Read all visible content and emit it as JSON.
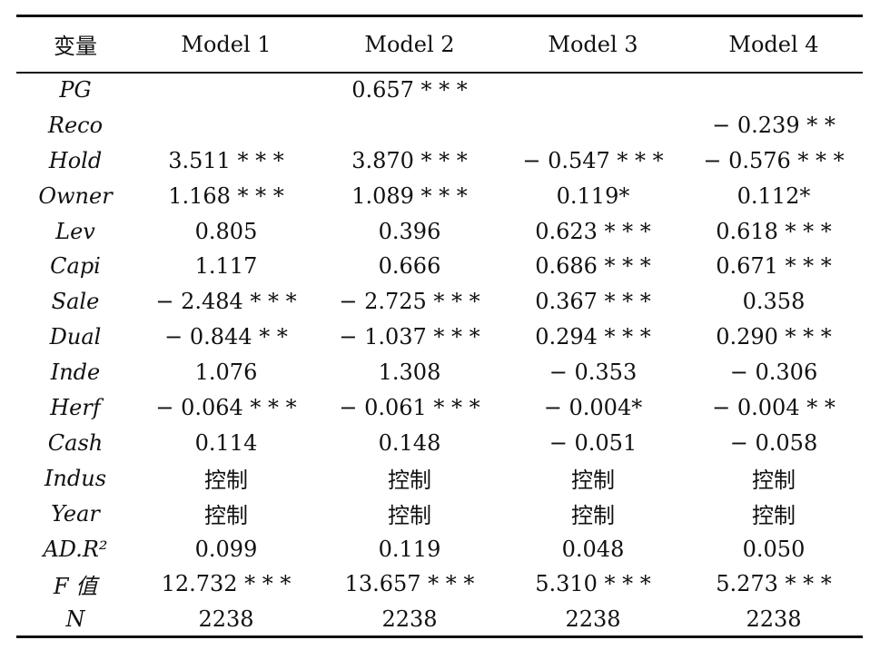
{
  "table": {
    "header": [
      "变量",
      "Model 1",
      "Model 2",
      "Model 3",
      "Model 4"
    ],
    "rows": [
      {
        "var": "PG",
        "cells": [
          "",
          "0.657 * * *",
          "",
          ""
        ]
      },
      {
        "var": "Reco",
        "cells": [
          "",
          "",
          "",
          "− 0.239 * *"
        ]
      },
      {
        "var": "Hold",
        "cells": [
          "3.511 * * *",
          "3.870 * * *",
          "− 0.547 * * *",
          "− 0.576 * * *"
        ]
      },
      {
        "var": "Owner",
        "cells": [
          "1.168 * * *",
          "1.089 * * *",
          "0.119*",
          "0.112*"
        ]
      },
      {
        "var": "Lev",
        "cells": [
          "0.805",
          "0.396",
          "0.623 * * *",
          "0.618 * * *"
        ]
      },
      {
        "var": "Capi",
        "cells": [
          "1.117",
          "0.666",
          "0.686 * * *",
          "0.671 * * *"
        ]
      },
      {
        "var": "Sale",
        "cells": [
          "− 2.484 * * *",
          "− 2.725 * * *",
          "0.367 * * *",
          "0.358"
        ]
      },
      {
        "var": "Dual",
        "cells": [
          "− 0.844 * *",
          "− 1.037 * * *",
          "0.294 * * *",
          "0.290 * * *"
        ]
      },
      {
        "var": "Inde",
        "cells": [
          "1.076",
          "1.308",
          "− 0.353",
          "− 0.306"
        ]
      },
      {
        "var": "Herf",
        "cells": [
          "− 0.064 * * *",
          "− 0.061 * * *",
          "− 0.004*",
          "− 0.004 * *"
        ]
      },
      {
        "var": "Cash",
        "cells": [
          "0.114",
          "0.148",
          "− 0.051",
          "− 0.058"
        ]
      },
      {
        "var": "Indus",
        "cells": [
          "控制",
          "控制",
          "控制",
          "控制"
        ]
      },
      {
        "var": "Year",
        "cells": [
          "控制",
          "控制",
          "控制",
          "控制"
        ]
      },
      {
        "var": "AD.R²",
        "cells": [
          "0.099",
          "0.119",
          "0.048",
          "0.050"
        ]
      },
      {
        "var": "F 值",
        "cells": [
          "12.732 * * *",
          "13.657 * * *",
          "5.310 * * *",
          "5.273 * * *"
        ]
      },
      {
        "var": "N",
        "cells": [
          "2238",
          "2238",
          "2238",
          "2238"
        ]
      }
    ]
  }
}
